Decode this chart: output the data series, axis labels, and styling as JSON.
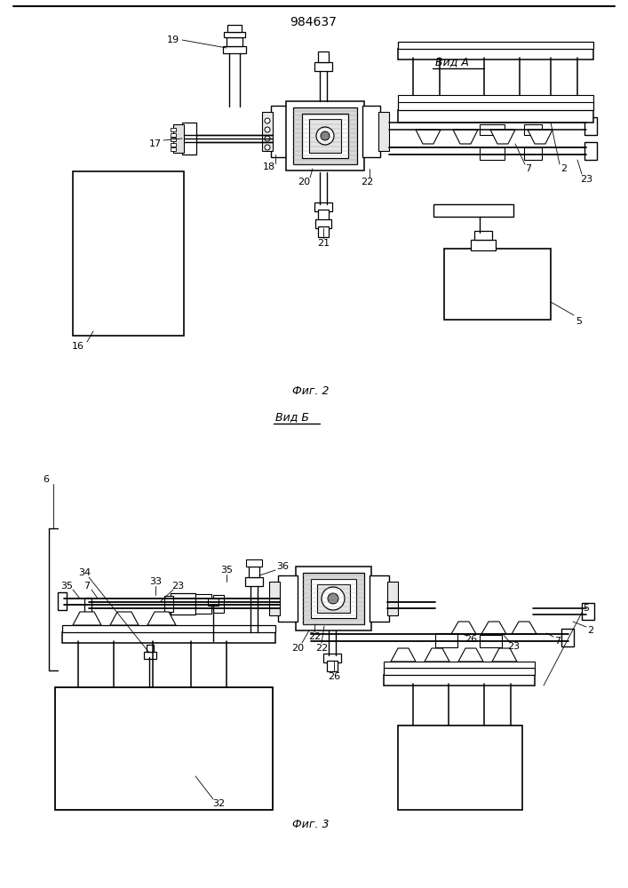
{
  "bg_color": "#ffffff",
  "title": "984637",
  "vid_a": "Вид А",
  "vid_b": "Вид Б",
  "fig2_caption": "Фиг. 2",
  "fig3_caption": "Фиг. 3"
}
